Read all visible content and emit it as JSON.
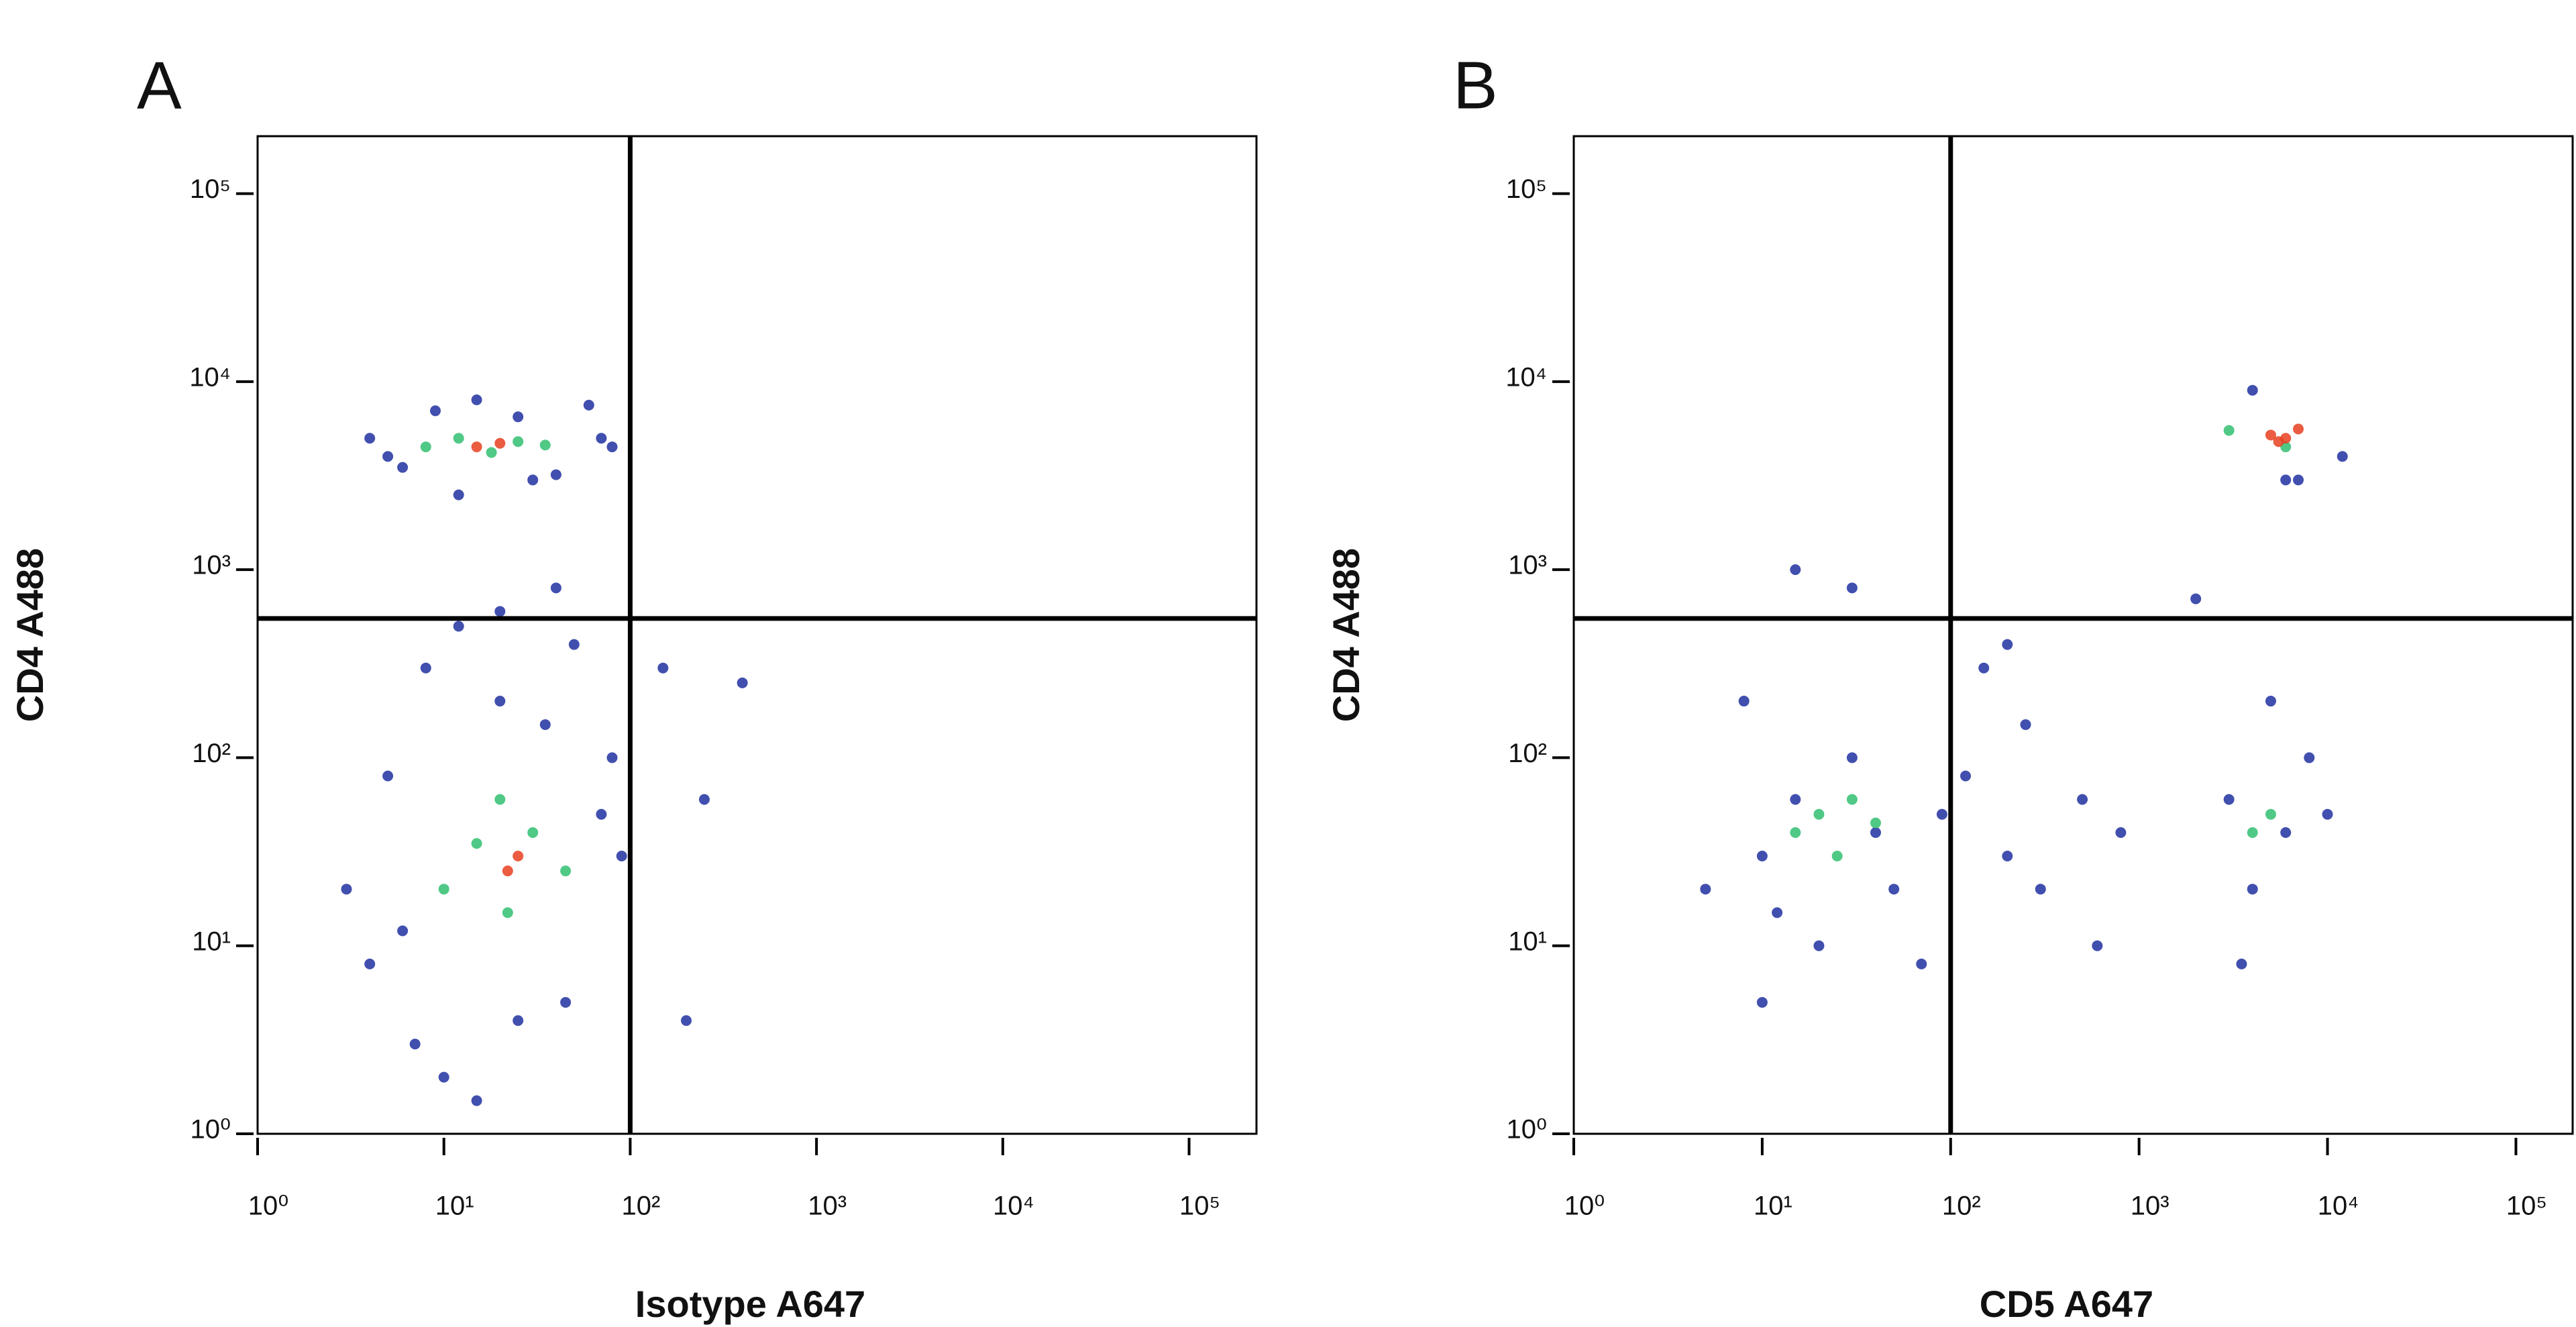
{
  "chart_data": [
    {
      "panel_label": "A",
      "type": "scatter",
      "xlabel": "Isotype A647",
      "ylabel": "CD4 A488",
      "xlog": true,
      "ylog": true,
      "xlim": [
        1,
        230000
      ],
      "ylim": [
        1,
        202000
      ],
      "xticks": [
        {
          "value": 1,
          "label": "10⁰"
        },
        {
          "value": 10,
          "label": "10¹"
        },
        {
          "value": 100,
          "label": "10²"
        },
        {
          "value": 1000,
          "label": "10³"
        },
        {
          "value": 10000,
          "label": "10⁴"
        },
        {
          "value": 100000,
          "label": "10⁵"
        }
      ],
      "yticks": [
        {
          "value": 1,
          "label": "10⁰"
        },
        {
          "value": 10,
          "label": "10¹"
        },
        {
          "value": 100,
          "label": "10²"
        },
        {
          "value": 1000,
          "label": "10³"
        },
        {
          "value": 10000,
          "label": "10⁴"
        },
        {
          "value": 100000,
          "label": "10⁵"
        }
      ],
      "gates": {
        "x": 100,
        "y": 550
      },
      "series": [
        {
          "color": "#2030a0",
          "x": [
            4,
            6,
            9,
            15,
            25,
            40,
            70,
            5,
            12,
            30,
            60,
            80,
            3,
            5,
            8,
            12,
            20,
            35,
            50,
            80,
            90,
            4,
            7,
            10,
            15,
            25,
            45,
            70,
            6,
            20,
            40,
            150,
            250,
            400,
            200
          ],
          "y": [
            5000,
            3500,
            7000,
            8000,
            6500,
            3200,
            5000,
            4000,
            2500,
            3000,
            7500,
            4500,
            20,
            80,
            300,
            500,
            200,
            150,
            400,
            100,
            30,
            8,
            3,
            2,
            1.5,
            4,
            5,
            50,
            12,
            600,
            800,
            300,
            60,
            250,
            4
          ]
        },
        {
          "color": "#30c070",
          "x": [
            8,
            12,
            18,
            25,
            35,
            10,
            15,
            22,
            30,
            45,
            20
          ],
          "y": [
            4500,
            5000,
            4200,
            4800,
            4600,
            20,
            35,
            15,
            40,
            25,
            60
          ]
        },
        {
          "color": "#e84020",
          "x": [
            15,
            20,
            25,
            22
          ],
          "y": [
            4500,
            4700,
            30,
            25
          ]
        }
      ]
    },
    {
      "panel_label": "B",
      "type": "scatter",
      "xlabel": "CD5 A647",
      "ylabel": "CD4 A488",
      "xlog": true,
      "ylog": true,
      "xlim": [
        1,
        200000
      ],
      "ylim": [
        1,
        202000
      ],
      "xticks": [
        {
          "value": 1,
          "label": "10⁰"
        },
        {
          "value": 10,
          "label": "10¹"
        },
        {
          "value": 100,
          "label": "10²"
        },
        {
          "value": 1000,
          "label": "10³"
        },
        {
          "value": 10000,
          "label": "10⁴"
        },
        {
          "value": 100000,
          "label": "10⁵"
        }
      ],
      "yticks": [
        {
          "value": 1,
          "label": "10⁰"
        },
        {
          "value": 10,
          "label": "10¹"
        },
        {
          "value": 100,
          "label": "10²"
        },
        {
          "value": 1000,
          "label": "10³"
        },
        {
          "value": 10000,
          "label": "10⁴"
        },
        {
          "value": 100000,
          "label": "10⁵"
        }
      ],
      "gates": {
        "x": 100,
        "y": 550
      },
      "series": [
        {
          "color": "#2030a0",
          "x": [
            10,
            15,
            20,
            30,
            50,
            8,
            12,
            40,
            70,
            90,
            120,
            200,
            300,
            500,
            800,
            150,
            250,
            600,
            3000,
            4000,
            6000,
            5000,
            3500,
            8000,
            10000,
            6000,
            15,
            30,
            5,
            2000,
            4000,
            7000,
            12000,
            10,
            200
          ],
          "y": [
            30,
            60,
            10,
            100,
            20,
            200,
            15,
            40,
            8,
            50,
            80,
            30,
            20,
            60,
            40,
            300,
            150,
            10,
            60,
            20,
            40,
            200,
            8,
            100,
            50,
            3000,
            1000,
            800,
            20,
            700,
            9000,
            3000,
            4000,
            5,
            400
          ]
        },
        {
          "color": "#30c070",
          "x": [
            15,
            20,
            25,
            30,
            40,
            4000,
            5000,
            3000,
            6000
          ],
          "y": [
            40,
            50,
            30,
            60,
            45,
            40,
            50,
            5500,
            4500
          ]
        },
        {
          "color": "#e84020",
          "x": [
            5000,
            6000,
            7000,
            5500
          ],
          "y": [
            5200,
            5000,
            5600,
            4800
          ]
        }
      ]
    }
  ]
}
